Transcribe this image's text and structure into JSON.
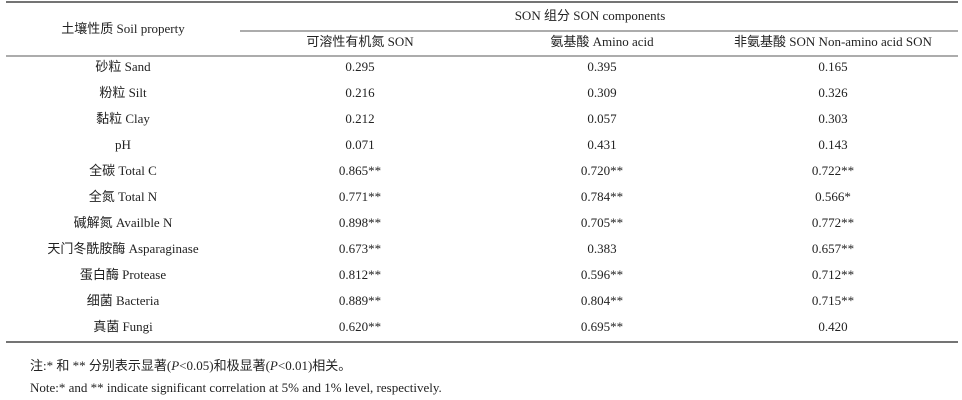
{
  "table": {
    "header": {
      "property": "土壤性质 Soil property",
      "group": "SON 组分 SON components",
      "columns": [
        "可溶性有机氮 SON",
        "氨基酸 Amino acid",
        "非氨基酸 SON  Non-amino acid SON"
      ]
    },
    "rows": [
      [
        "砂粒 Sand",
        "0.295",
        "0.395",
        "0.165"
      ],
      [
        "粉粒 Silt",
        "0.216",
        "0.309",
        "0.326"
      ],
      [
        "黏粒 Clay",
        "0.212",
        "0.057",
        "0.303"
      ],
      [
        "pH",
        "0.071",
        "0.431",
        "0.143"
      ],
      [
        "全碳 Total C",
        "0.865**",
        "0.720**",
        "0.722**"
      ],
      [
        "全氮 Total N",
        "0.771**",
        "0.784**",
        "0.566*"
      ],
      [
        "碱解氮 Availble N",
        "0.898**",
        "0.705**",
        "0.772**"
      ],
      [
        "天门冬酰胺酶 Asparaginase",
        "0.673**",
        "0.383",
        "0.657**"
      ],
      [
        "蛋白酶 Protease",
        "0.812**",
        "0.596**",
        "0.712**"
      ],
      [
        "细菌 Bacteria",
        "0.889**",
        "0.804**",
        "0.715**"
      ],
      [
        "真菌 Fungi",
        "0.620**",
        "0.695**",
        "0.420"
      ]
    ]
  },
  "notes": {
    "cn": [
      "注:* 和 ** 分别表示显著(",
      "P",
      "<0.05)和极显著(",
      "P",
      "<0.01)相关。"
    ],
    "en": "Note:* and ** indicate significant correlation at 5% and 1% level, respectively."
  }
}
